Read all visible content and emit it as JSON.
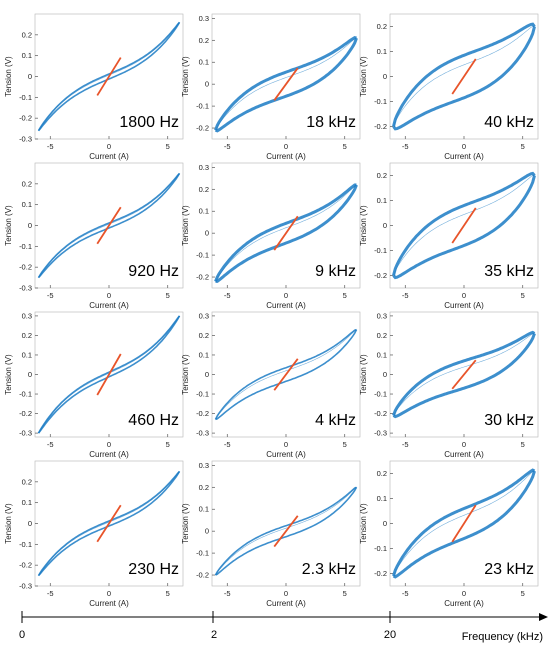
{
  "colors": {
    "loop": "#1b7bc4",
    "line": "#e8542a",
    "axis": "#000000"
  },
  "frequency_axis": {
    "label": "Frequency (kHz)",
    "ticks": [
      "0",
      "2",
      "20"
    ]
  },
  "chart_data": [
    {
      "type": "line",
      "freq_label": "1800 Hz",
      "xlabel": "Current (A)",
      "ylabel": "Tension (V)",
      "xticks": [
        "-5",
        "0",
        "5"
      ],
      "yticks": [
        "-0.3",
        "-0.2",
        "-0.1",
        "0",
        "0.1",
        "0.2"
      ],
      "xlim": [
        -6.3,
        6.3
      ],
      "ylim": [
        -0.3,
        0.3
      ],
      "loop_width": 0.012,
      "amplitude": 0.26
    },
    {
      "type": "line",
      "freq_label": "18 kHz",
      "xlabel": "Current (A)",
      "ylabel": "Tension (V)",
      "xticks": [
        "-5",
        "0",
        "5"
      ],
      "yticks": [
        "-0.2",
        "-0.1",
        "0",
        "0.1",
        "0.2",
        "0.3"
      ],
      "xlim": [
        -6.3,
        6.3
      ],
      "ylim": [
        -0.25,
        0.32
      ],
      "loop_width": 0.055,
      "amplitude": 0.21
    },
    {
      "type": "line",
      "freq_label": "40 kHz",
      "xlabel": "Current (A)",
      "ylabel": "Tension (V)",
      "xticks": [
        "-5",
        "0",
        "5"
      ],
      "yticks": [
        "-0.2",
        "-0.1",
        "0",
        "0.1",
        "0.2"
      ],
      "xlim": [
        -6.3,
        6.3
      ],
      "ylim": [
        -0.25,
        0.25
      ],
      "loop_width": 0.085,
      "amplitude": 0.2
    },
    {
      "type": "line",
      "freq_label": "920 Hz",
      "xlabel": "Current (A)",
      "ylabel": "Tension (V)",
      "xticks": [
        "-5",
        "0",
        "5"
      ],
      "yticks": [
        "-0.3",
        "-0.2",
        "-0.1",
        "0",
        "0.1",
        "0.2"
      ],
      "xlim": [
        -6.3,
        6.3
      ],
      "ylim": [
        -0.3,
        0.3
      ],
      "loop_width": 0.012,
      "amplitude": 0.25
    },
    {
      "type": "line",
      "freq_label": "9 kHz",
      "xlabel": "Current (A)",
      "ylabel": "Tension (V)",
      "xticks": [
        "-5",
        "0",
        "5"
      ],
      "yticks": [
        "-0.2",
        "-0.1",
        "0",
        "0.1",
        "0.2",
        "0.3"
      ],
      "xlim": [
        -6.3,
        6.3
      ],
      "ylim": [
        -0.25,
        0.32
      ],
      "loop_width": 0.045,
      "amplitude": 0.22
    },
    {
      "type": "line",
      "freq_label": "35 kHz",
      "xlabel": "Current (A)",
      "ylabel": "Tension (V)",
      "xticks": [
        "-5",
        "0",
        "5"
      ],
      "yticks": [
        "-0.2",
        "-0.1",
        "0",
        "0.1",
        "0.2"
      ],
      "xlim": [
        -6.3,
        6.3
      ],
      "ylim": [
        -0.25,
        0.25
      ],
      "loop_width": 0.08,
      "amplitude": 0.2
    },
    {
      "type": "line",
      "freq_label": "460 Hz",
      "xlabel": "Current (A)",
      "ylabel": "Tension (V)",
      "xticks": [
        "-5",
        "0",
        "5"
      ],
      "yticks": [
        "-0.3",
        "-0.2",
        "-0.1",
        "0",
        "0.1",
        "0.2",
        "0.3"
      ],
      "xlim": [
        -6.3,
        6.3
      ],
      "ylim": [
        -0.32,
        0.32
      ],
      "loop_width": 0.012,
      "amplitude": 0.3
    },
    {
      "type": "line",
      "freq_label": "4 kHz",
      "xlabel": "Current (A)",
      "ylabel": "Tension (V)",
      "xticks": [
        "-5",
        "0",
        "5"
      ],
      "yticks": [
        "-0.3",
        "-0.2",
        "-0.1",
        "0",
        "0.1",
        "0.2",
        "0.3"
      ],
      "xlim": [
        -6.3,
        6.3
      ],
      "ylim": [
        -0.32,
        0.32
      ],
      "loop_width": 0.035,
      "amplitude": 0.23
    },
    {
      "type": "line",
      "freq_label": "30 kHz",
      "xlabel": "Current (A)",
      "ylabel": "Tension (V)",
      "xticks": [
        "-5",
        "0",
        "5"
      ],
      "yticks": [
        "-0.3",
        "-0.2",
        "-0.1",
        "0",
        "0.1",
        "0.2",
        "0.3"
      ],
      "xlim": [
        -6.3,
        6.3
      ],
      "ylim": [
        -0.32,
        0.32
      ],
      "loop_width": 0.07,
      "amplitude": 0.21
    },
    {
      "type": "line",
      "freq_label": "230 Hz",
      "xlabel": "Current (A)",
      "ylabel": "Tension (V)",
      "xticks": [
        "-5",
        "0",
        "5"
      ],
      "yticks": [
        "-0.3",
        "-0.2",
        "-0.1",
        "0",
        "0.1",
        "0.2"
      ],
      "xlim": [
        -6.3,
        6.3
      ],
      "ylim": [
        -0.3,
        0.3
      ],
      "loop_width": 0.012,
      "amplitude": 0.25
    },
    {
      "type": "line",
      "freq_label": "2.3 kHz",
      "xlabel": "Current (A)",
      "ylabel": "Tension (V)",
      "xticks": [
        "-5",
        "0",
        "5"
      ],
      "yticks": [
        "-0.2",
        "-0.1",
        "0",
        "0.1",
        "0.2",
        "0.3"
      ],
      "xlim": [
        -6.3,
        6.3
      ],
      "ylim": [
        -0.25,
        0.32
      ],
      "loop_width": 0.025,
      "amplitude": 0.2
    },
    {
      "type": "line",
      "freq_label": "23 kHz",
      "xlabel": "Current (A)",
      "ylabel": "Tension (V)",
      "xticks": [
        "-5",
        "0",
        "5"
      ],
      "yticks": [
        "-0.2",
        "-0.1",
        "0",
        "0.1",
        "0.2"
      ],
      "xlim": [
        -6.3,
        6.3
      ],
      "ylim": [
        -0.25,
        0.25
      ],
      "loop_width": 0.06,
      "amplitude": 0.21
    }
  ]
}
